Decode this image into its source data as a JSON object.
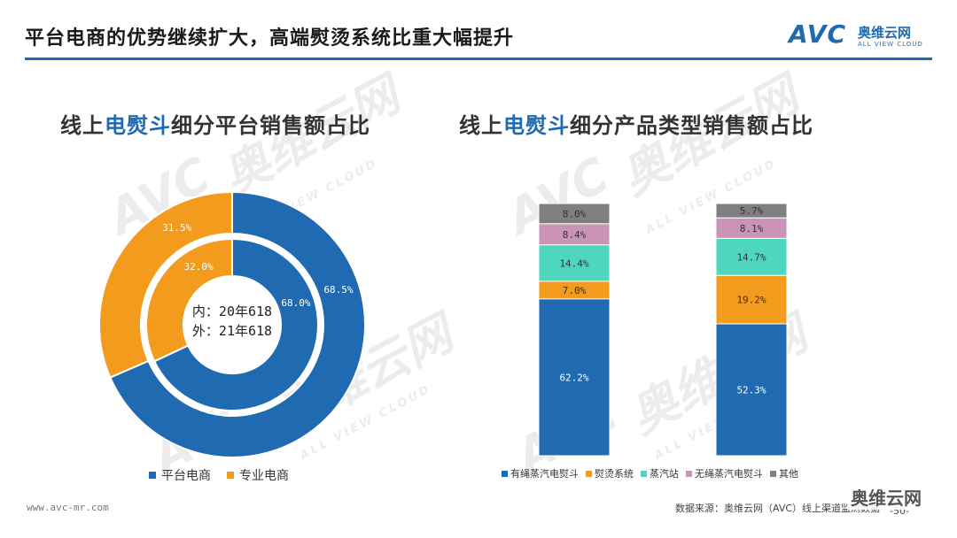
{
  "header": {
    "title": "平台电商的优势继续扩大，高端熨烫系统比重大幅提升",
    "brand_mark": "AVC",
    "brand_cn": "奥维云网",
    "brand_en": "ALL VIEW CLOUD"
  },
  "left_section": {
    "title_prefix": "线上",
    "title_highlight": "电熨斗",
    "title_suffix": "细分平台销售额占比"
  },
  "right_section": {
    "title_prefix": "线上",
    "title_highlight": "电熨斗",
    "title_suffix": "细分产品类型销售额占比"
  },
  "colors": {
    "blue": "#1f6ab0",
    "orange": "#f29b1d",
    "teal": "#4fd6be",
    "pink": "#c994b6",
    "gray": "#7f7f7f"
  },
  "chart_data": [
    {
      "type": "pie",
      "subtype": "donut",
      "center_label": [
        "内：20年618",
        "外：21年618"
      ],
      "categories": [
        "平台电商",
        "专业电商"
      ],
      "series": [
        {
          "ring": "inner",
          "values": [
            68.0,
            32.0
          ],
          "labels": [
            "68.0%",
            "32.0%"
          ]
        },
        {
          "ring": "outer",
          "values": [
            68.5,
            31.5
          ],
          "labels": [
            "68.5%",
            "31.5%"
          ]
        }
      ],
      "legend_position": "bottom"
    },
    {
      "type": "bar",
      "stacked": true,
      "percent": true,
      "categories": [
        "",
        ""
      ],
      "series": [
        {
          "name": "有绳蒸汽电熨斗",
          "values": [
            62.2,
            52.3
          ],
          "labels": [
            "62.2%",
            "52.3%"
          ]
        },
        {
          "name": "熨烫系统",
          "values": [
            7.0,
            19.2
          ],
          "labels": [
            "7.0%",
            "19.2%"
          ]
        },
        {
          "name": "蒸汽站",
          "values": [
            14.4,
            14.7
          ],
          "labels": [
            "14.4%",
            "14.7%"
          ]
        },
        {
          "name": "无绳蒸汽电熨斗",
          "values": [
            8.4,
            8.1
          ],
          "labels": [
            "8.4%",
            "8.1%"
          ]
        },
        {
          "name": "其他",
          "values": [
            8.0,
            5.7
          ],
          "labels": [
            "8.0%",
            "5.7%"
          ]
        }
      ],
      "ylim": [
        0,
        100
      ],
      "legend_position": "bottom"
    }
  ],
  "footer": {
    "url": "www.avc-mr.com",
    "source": "数据来源：奥维云网（AVC）线上渠道监测数据",
    "page": "-50-",
    "wechat": "奥维云网"
  },
  "watermark": {
    "mark": "AVC",
    "cn": "奥维云网",
    "en": "ALL VIEW CLOUD"
  }
}
